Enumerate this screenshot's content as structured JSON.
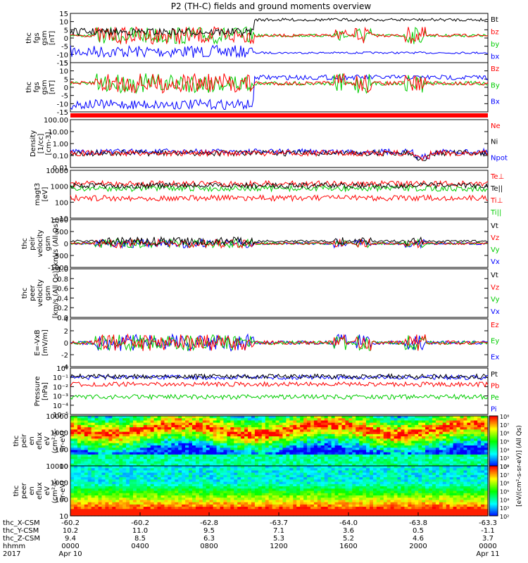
{
  "title": "P2 (TH-C) fields and ground moments overview",
  "colors": {
    "black": "#000000",
    "red": "#ff0000",
    "green": "#00cc00",
    "blue": "#0000ff"
  },
  "chart_data": [
    {
      "id": "fgs_gsm",
      "type": "line",
      "ylabel": [
        "thc",
        "fgs",
        "gsm",
        "[nT]"
      ],
      "yticks": [
        "15",
        "10",
        "5",
        "0",
        "-5",
        "-10",
        "-15"
      ],
      "series": [
        {
          "name": "Bt",
          "color": "black"
        },
        {
          "name": "bz",
          "color": "red"
        },
        {
          "name": "by",
          "color": "green"
        },
        {
          "name": "bx",
          "color": "blue"
        }
      ]
    },
    {
      "id": "fgs_gse",
      "type": "line",
      "ylabel": [
        "thc",
        "fgs",
        "gsm",
        "[nT]"
      ],
      "yticks": [
        "15",
        "10",
        "5",
        "0",
        "-5",
        "-10",
        "-15"
      ],
      "series": [
        {
          "name": "Bz",
          "color": "red"
        },
        {
          "name": "By",
          "color": "green"
        },
        {
          "name": "Bx",
          "color": "blue"
        }
      ]
    },
    {
      "id": "density",
      "type": "line",
      "scale": "log",
      "ylabel": [
        "Density",
        "[1/cc]",
        "[cm-3]"
      ],
      "yticks": [
        "100.00",
        "10.00",
        "1.00",
        "0.10",
        "0.01"
      ],
      "series": [
        {
          "name": "Ne",
          "color": "red"
        },
        {
          "name": "Ni",
          "color": "black"
        },
        {
          "name": "Npot",
          "color": "blue"
        }
      ]
    },
    {
      "id": "temperature",
      "type": "line",
      "scale": "log",
      "ylabel": [
        "magt3",
        "[eV]"
      ],
      "yticks": [
        "10000",
        "1000",
        "100",
        "10"
      ],
      "series": [
        {
          "name": "Te⊥",
          "color": "red"
        },
        {
          "name": "Te||",
          "color": "black"
        },
        {
          "name": "Ti⊥",
          "color": "red"
        },
        {
          "name": "Ti||",
          "color": "green"
        }
      ]
    },
    {
      "id": "peir_velocity",
      "type": "line",
      "ylabel": [
        "thc",
        "peir",
        "velocity",
        "gsm",
        "[km/s (All Qs)]"
      ],
      "yticks": [
        "1000",
        "500",
        "0",
        "-500",
        "-1000"
      ],
      "series": [
        {
          "name": "Vt",
          "color": "black"
        },
        {
          "name": "Vz",
          "color": "red"
        },
        {
          "name": "Vy",
          "color": "green"
        },
        {
          "name": "Vx",
          "color": "blue"
        }
      ]
    },
    {
      "id": "peer_velocity",
      "type": "line",
      "ylabel": [
        "thc",
        "peer",
        "velocity",
        "gsm",
        "[km/s (All Qs)]"
      ],
      "yticks": [
        "1.0",
        "0.8",
        "0.6",
        "0.4",
        "0.2",
        "0.0"
      ],
      "series": [
        {
          "name": "Vt",
          "color": "black"
        },
        {
          "name": "Vz",
          "color": "red"
        },
        {
          "name": "Vy",
          "color": "green"
        },
        {
          "name": "Vx",
          "color": "blue"
        }
      ]
    },
    {
      "id": "efield",
      "type": "line",
      "ylabel": [
        "E=-VxB",
        "[mV/m]"
      ],
      "yticks": [
        "4",
        "2",
        "0",
        "-2",
        "-4"
      ],
      "series": [
        {
          "name": "Ez",
          "color": "red"
        },
        {
          "name": "Ey",
          "color": "green"
        },
        {
          "name": "Ex",
          "color": "blue"
        }
      ]
    },
    {
      "id": "pressure",
      "type": "line",
      "scale": "log",
      "ylabel": [
        "Pressure",
        "[nPa]"
      ],
      "yticks": [
        "10⁰",
        "10⁻¹",
        "10⁻²",
        "10⁻³",
        "10⁻⁴",
        "10⁻⁵"
      ],
      "series": [
        {
          "name": "Pt",
          "color": "black"
        },
        {
          "name": "Pb",
          "color": "red"
        },
        {
          "name": "Pe",
          "color": "green"
        },
        {
          "name": "Pi",
          "color": "blue"
        }
      ]
    },
    {
      "id": "peir_spec",
      "type": "heatmap",
      "ylabel": [
        "thc",
        "peir",
        "en",
        "eflux",
        "eV",
        "(cm²-s-",
        "sr-eV)"
      ],
      "yticks": [
        "10000",
        "1000",
        "100",
        "10"
      ]
    },
    {
      "id": "peer_spec",
      "type": "heatmap",
      "ylabel": [
        "thc",
        "peer",
        "en",
        "eflux",
        "eV",
        "(cm²-s-",
        "sr-eV)"
      ],
      "yticks": [
        "10000",
        "1000",
        "100",
        "10"
      ]
    }
  ],
  "colorbar": {
    "label": "[eV/(cm²-s-sr-eV)] (All Qs)",
    "ticks": [
      "10⁸",
      "10⁷",
      "10⁶",
      "10⁵",
      "10⁴",
      "10³",
      "10²"
    ]
  },
  "xaxis": {
    "rows": [
      {
        "label": "thc_X-CSM",
        "values": [
          "-60.2",
          "-60.2",
          "-62.8",
          "-63.7",
          "-64.0",
          "-63.8",
          "-63.3"
        ]
      },
      {
        "label": "thc_Y-CSM",
        "values": [
          "10.2",
          "11.0",
          "9.5",
          "7.1",
          "3.6",
          "0.5",
          "-1.1"
        ]
      },
      {
        "label": "thc_Z-CSM",
        "values": [
          "9.4",
          "8.5",
          "6.3",
          "5.3",
          "5.2",
          "4.6",
          "3.7"
        ]
      },
      {
        "label": "hhmm",
        "values": [
          "0000",
          "0400",
          "0800",
          "1200",
          "1600",
          "2000",
          "0000"
        ]
      },
      {
        "label": "2017",
        "values": [
          "Apr 10",
          "",
          "",
          "",
          "",
          "",
          "Apr 11"
        ]
      }
    ]
  }
}
